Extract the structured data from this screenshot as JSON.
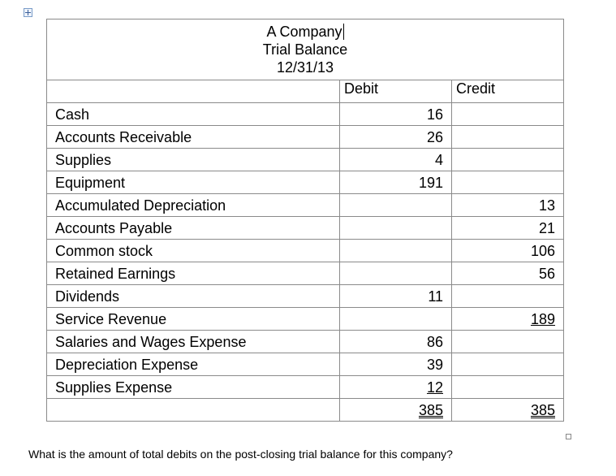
{
  "table": {
    "title_lines": [
      "A Company",
      "Trial Balance",
      "12/31/13"
    ],
    "columns": [
      "Debit",
      "Credit"
    ],
    "rows": [
      {
        "account": "Cash",
        "debit": 16,
        "credit": null
      },
      {
        "account": "Accounts Receivable",
        "debit": 26,
        "credit": null
      },
      {
        "account": "Supplies",
        "debit": 4,
        "credit": null
      },
      {
        "account": "Equipment",
        "debit": 191,
        "credit": null
      },
      {
        "account": "Accumulated Depreciation",
        "debit": null,
        "credit": 13
      },
      {
        "account": "Accounts Payable",
        "debit": null,
        "credit": 21
      },
      {
        "account": "Common stock",
        "debit": null,
        "credit": 106
      },
      {
        "account": "Retained Earnings",
        "debit": null,
        "credit": 56
      },
      {
        "account": "Dividends",
        "debit": 11,
        "credit": null
      },
      {
        "account": "Service Revenue",
        "debit": null,
        "credit": 189
      },
      {
        "account": "Salaries and Wages Expense",
        "debit": 86,
        "credit": null
      },
      {
        "account": "Depreciation Expense",
        "debit": 39,
        "credit": null
      },
      {
        "account": "Supplies Expense",
        "debit": 12,
        "credit": null
      }
    ],
    "totals": {
      "debit": 385,
      "credit": 385
    }
  },
  "question": "What is the amount of total debits on the post-closing trial balance for this company?"
}
